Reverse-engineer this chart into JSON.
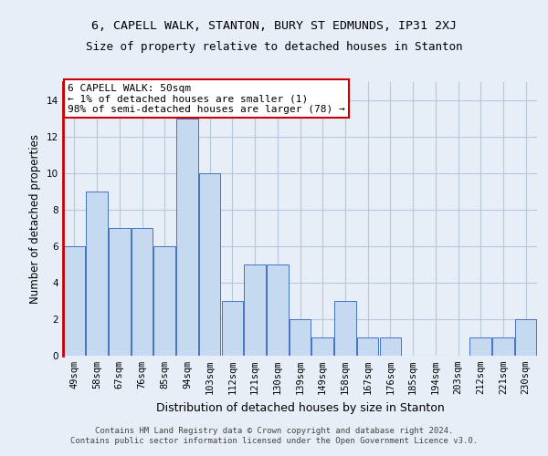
{
  "title1": "6, CAPELL WALK, STANTON, BURY ST EDMUNDS, IP31 2XJ",
  "title2": "Size of property relative to detached houses in Stanton",
  "xlabel": "Distribution of detached houses by size in Stanton",
  "ylabel": "Number of detached properties",
  "categories": [
    "49sqm",
    "58sqm",
    "67sqm",
    "76sqm",
    "85sqm",
    "94sqm",
    "103sqm",
    "112sqm",
    "121sqm",
    "130sqm",
    "139sqm",
    "149sqm",
    "158sqm",
    "167sqm",
    "176sqm",
    "185sqm",
    "194sqm",
    "203sqm",
    "212sqm",
    "221sqm",
    "230sqm"
  ],
  "values": [
    6,
    9,
    7,
    7,
    6,
    13,
    10,
    3,
    5,
    5,
    2,
    1,
    3,
    1,
    1,
    0,
    0,
    0,
    1,
    1,
    2
  ],
  "bar_color": "#c5d9f1",
  "bar_edge_color": "#4472c4",
  "ylim": [
    0,
    15
  ],
  "yticks": [
    0,
    2,
    4,
    6,
    8,
    10,
    12,
    14
  ],
  "annotation_box_text": "6 CAPELL WALK: 50sqm\n← 1% of detached houses are smaller (1)\n98% of semi-detached houses are larger (78) →",
  "annotation_box_color": "#ffffff",
  "annotation_box_edge_color": "#cc0000",
  "footer_line1": "Contains HM Land Registry data © Crown copyright and database right 2024.",
  "footer_line2": "Contains public sector information licensed under the Open Government Licence v3.0.",
  "background_color": "#e8eef8",
  "grid_color": "#d0d8e8",
  "red_line_color": "#cc0000",
  "title1_fontsize": 9.5,
  "title2_fontsize": 9.0,
  "ylabel_fontsize": 8.5,
  "xlabel_fontsize": 9.0,
  "tick_fontsize": 7.5,
  "annotation_fontsize": 8.0,
  "footer_fontsize": 6.5
}
